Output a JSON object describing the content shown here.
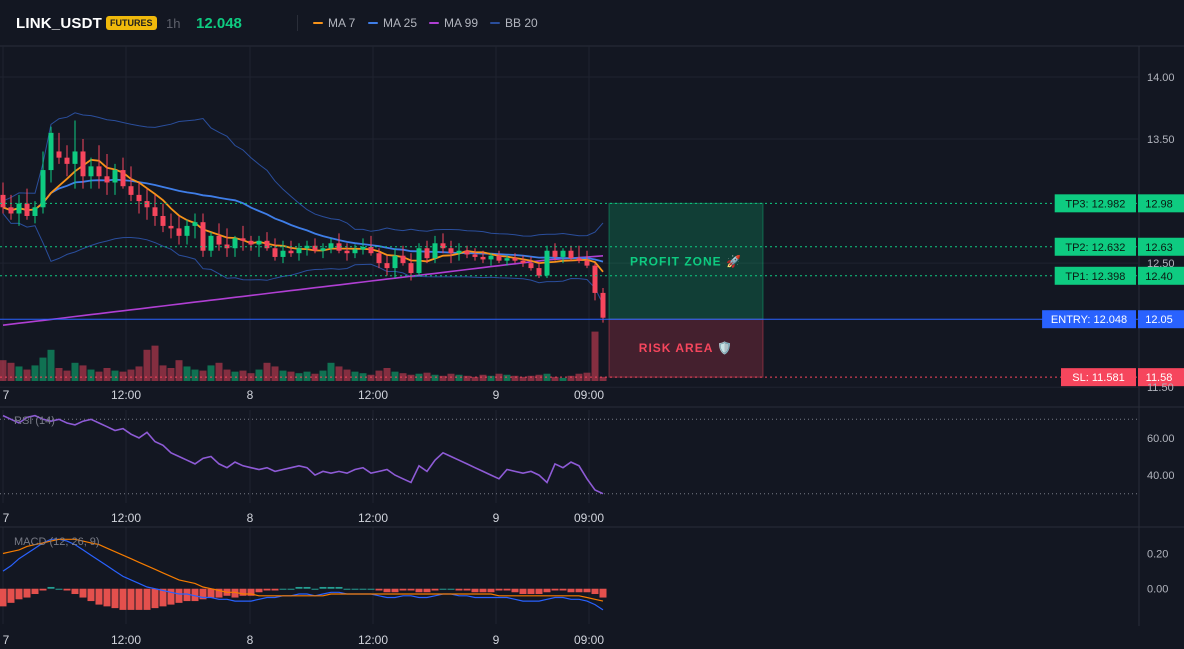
{
  "header": {
    "symbol": "LINK_USDT",
    "badge": "FUTURES",
    "timeframe": "1h",
    "price": "12.048",
    "colors": {
      "badge_bg": "#f0b90b",
      "badge_text": "#1e1e1e",
      "price": "#0ecb81"
    }
  },
  "legend": [
    {
      "label": "MA 7",
      "color": "#f7931a"
    },
    {
      "label": "MA 25",
      "color": "#3f7ee8"
    },
    {
      "label": "MA 99",
      "color": "#b03fd3"
    },
    {
      "label": "BB 20",
      "color": "#2a4e9c"
    }
  ],
  "chart_data": [
    {
      "type": "candlestick",
      "title": "LINK_USDT 1h",
      "colors": {
        "up": "#0ecb81",
        "down": "#f6465d",
        "bb": "#2a4e9c",
        "ma7": "#f7931a",
        "ma25": "#3f7ee8",
        "ma99": "#b03fd3"
      },
      "ylim": [
        11.55,
        14.25
      ],
      "y_ticks": [
        14.0,
        13.5,
        12.5,
        11.5
      ],
      "y_tick_labels": [
        "14.00",
        "13.50",
        "12.50",
        "11.50"
      ],
      "x_tick_labels": [
        "7",
        "12:00",
        "8",
        "12:00",
        "9",
        "09:00"
      ],
      "candles": [
        [
          13.05,
          13.15,
          12.9,
          12.95
        ],
        [
          12.95,
          13.05,
          12.85,
          12.9
        ],
        [
          12.9,
          13.05,
          12.8,
          12.98
        ],
        [
          12.98,
          13.1,
          12.85,
          12.88
        ],
        [
          12.88,
          13.0,
          12.82,
          12.95
        ],
        [
          12.95,
          13.4,
          12.9,
          13.25
        ],
        [
          13.25,
          13.6,
          13.15,
          13.55
        ],
        [
          13.4,
          13.55,
          13.3,
          13.35
        ],
        [
          13.35,
          13.45,
          13.2,
          13.3
        ],
        [
          13.3,
          13.65,
          13.1,
          13.4
        ],
        [
          13.4,
          13.5,
          13.1,
          13.2
        ],
        [
          13.2,
          13.35,
          13.1,
          13.28
        ],
        [
          13.28,
          13.45,
          13.1,
          13.2
        ],
        [
          13.2,
          13.38,
          13.05,
          13.15
        ],
        [
          13.15,
          13.3,
          13.05,
          13.25
        ],
        [
          13.25,
          13.35,
          13.1,
          13.12
        ],
        [
          13.12,
          13.28,
          13.0,
          13.05
        ],
        [
          13.05,
          13.15,
          12.9,
          13.0
        ],
        [
          13.0,
          13.1,
          12.85,
          12.95
        ],
        [
          12.95,
          13.05,
          12.8,
          12.88
        ],
        [
          12.88,
          12.98,
          12.75,
          12.8
        ],
        [
          12.8,
          12.9,
          12.7,
          12.78
        ],
        [
          12.78,
          12.88,
          12.65,
          12.72
        ],
        [
          12.72,
          12.85,
          12.65,
          12.8
        ],
        [
          12.8,
          12.9,
          12.7,
          12.83
        ],
        [
          12.83,
          12.9,
          12.55,
          12.6
        ],
        [
          12.6,
          12.75,
          12.55,
          12.72
        ],
        [
          12.72,
          12.82,
          12.6,
          12.65
        ],
        [
          12.65,
          12.78,
          12.55,
          12.62
        ],
        [
          12.62,
          12.72,
          12.55,
          12.7
        ],
        [
          12.7,
          12.8,
          12.6,
          12.68
        ],
        [
          12.68,
          12.72,
          12.6,
          12.65
        ],
        [
          12.65,
          12.72,
          12.55,
          12.68
        ],
        [
          12.68,
          12.75,
          12.6,
          12.62
        ],
        [
          12.62,
          12.7,
          12.52,
          12.55
        ],
        [
          12.55,
          12.68,
          12.5,
          12.6
        ],
        [
          12.6,
          12.68,
          12.55,
          12.58
        ],
        [
          12.58,
          12.66,
          12.52,
          12.62
        ],
        [
          12.62,
          12.68,
          12.56,
          12.64
        ],
        [
          12.64,
          12.7,
          12.58,
          12.6
        ],
        [
          12.6,
          12.66,
          12.54,
          12.62
        ],
        [
          12.62,
          12.7,
          12.58,
          12.66
        ],
        [
          12.66,
          12.74,
          12.58,
          12.6
        ],
        [
          12.6,
          12.66,
          12.52,
          12.58
        ],
        [
          12.58,
          12.65,
          12.54,
          12.61
        ],
        [
          12.61,
          12.7,
          12.57,
          12.63
        ],
        [
          12.63,
          12.72,
          12.56,
          12.58
        ],
        [
          12.58,
          12.62,
          12.46,
          12.5
        ],
        [
          12.5,
          12.56,
          12.4,
          12.46
        ],
        [
          12.46,
          12.62,
          12.38,
          12.56
        ],
        [
          12.56,
          12.64,
          12.48,
          12.5
        ],
        [
          12.5,
          12.58,
          12.36,
          12.42
        ],
        [
          12.42,
          12.66,
          12.4,
          12.62
        ],
        [
          12.62,
          12.68,
          12.5,
          12.54
        ],
        [
          12.54,
          12.72,
          12.5,
          12.66
        ],
        [
          12.66,
          12.74,
          12.58,
          12.62
        ],
        [
          12.62,
          12.68,
          12.5,
          12.58
        ],
        [
          12.58,
          12.66,
          12.52,
          12.6
        ],
        [
          12.6,
          12.64,
          12.54,
          12.57
        ],
        [
          12.57,
          12.62,
          12.52,
          12.55
        ],
        [
          12.55,
          12.6,
          12.5,
          12.53
        ],
        [
          12.53,
          12.58,
          12.48,
          12.56
        ],
        [
          12.56,
          12.6,
          12.5,
          12.52
        ],
        [
          12.52,
          12.56,
          12.48,
          12.54
        ],
        [
          12.54,
          12.58,
          12.5,
          12.52
        ],
        [
          12.52,
          12.56,
          12.47,
          12.5
        ],
        [
          12.5,
          12.55,
          12.44,
          12.46
        ],
        [
          12.46,
          12.5,
          12.38,
          12.4
        ],
        [
          12.4,
          12.64,
          12.38,
          12.6
        ],
        [
          12.6,
          12.66,
          12.52,
          12.55
        ],
        [
          12.55,
          12.62,
          12.5,
          12.6
        ],
        [
          12.6,
          12.64,
          12.52,
          12.54
        ],
        [
          12.54,
          12.64,
          12.5,
          12.52
        ],
        [
          12.52,
          12.6,
          12.46,
          12.48
        ],
        [
          12.48,
          12.5,
          12.2,
          12.26
        ],
        [
          12.26,
          12.3,
          12.02,
          12.06
        ]
      ],
      "volume": [
        40,
        35,
        28,
        22,
        30,
        45,
        60,
        25,
        20,
        35,
        30,
        22,
        18,
        25,
        20,
        18,
        22,
        28,
        60,
        68,
        30,
        25,
        40,
        28,
        22,
        20,
        30,
        35,
        22,
        18,
        20,
        15,
        22,
        35,
        28,
        20,
        18,
        15,
        18,
        14,
        20,
        35,
        28,
        22,
        18,
        15,
        12,
        20,
        25,
        18,
        15,
        12,
        14,
        16,
        12,
        10,
        14,
        12,
        10,
        8,
        12,
        10,
        14,
        12,
        10,
        8,
        10,
        12,
        14,
        8,
        6,
        10,
        14,
        16,
        95,
        8
      ],
      "levels": [
        {
          "label": "TP3: 12.982",
          "value_label": "12.98",
          "value": 12.982,
          "color": "#0ecb81"
        },
        {
          "label": "TP2: 12.632",
          "value_label": "12.63",
          "value": 12.632,
          "color": "#0ecb81"
        },
        {
          "label": "TP1: 12.398",
          "value_label": "12.40",
          "value": 12.398,
          "color": "#0ecb81"
        },
        {
          "label": "ENTRY: 12.048",
          "value_label": "12.05",
          "value": 12.048,
          "color": "#2962ff"
        },
        {
          "label": "SL: 11.581",
          "value_label": "11.58",
          "value": 11.581,
          "color": "#f6465d"
        }
      ],
      "zones": [
        {
          "label": "PROFIT ZONE 🚀",
          "from": 12.048,
          "to": 12.982,
          "color": "#0ecb81"
        },
        {
          "label": "RISK AREA 🛡️",
          "from": 11.581,
          "to": 12.048,
          "color": "#f6465d"
        }
      ]
    },
    {
      "type": "line",
      "title": "RSI (14)",
      "ylim": [
        25,
        75
      ],
      "y_ticks": [
        60,
        40
      ],
      "y_tick_labels": [
        "60.00",
        "40.00"
      ],
      "guides": [
        70,
        30
      ],
      "x_tick_labels": [
        "7",
        "12:00",
        "8",
        "12:00",
        "9",
        "09:00"
      ],
      "series": [
        {
          "color": "#8e5bd6",
          "values": [
            72,
            70,
            68,
            71,
            72,
            70,
            69,
            70,
            68,
            67,
            69,
            70,
            68,
            66,
            64,
            65,
            62,
            60,
            63,
            58,
            56,
            52,
            50,
            48,
            46,
            49,
            50,
            46,
            44,
            47,
            45,
            44,
            43,
            44,
            42,
            43,
            44,
            45,
            44,
            40,
            42,
            41,
            42,
            41,
            43,
            44,
            41,
            42,
            43,
            40,
            38,
            36,
            45,
            42,
            48,
            52,
            50,
            48,
            46,
            44,
            42,
            40,
            38,
            43,
            42,
            41,
            42,
            40,
            36,
            46,
            44,
            47,
            45,
            38,
            32,
            30
          ]
        }
      ]
    },
    {
      "type": "line",
      "title": "MACD (12, 26, 9)",
      "ylim": [
        -0.2,
        0.35
      ],
      "y_ticks": [
        0.2,
        0.0
      ],
      "y_tick_labels": [
        "0.20",
        "0.00"
      ],
      "x_tick_labels": [
        "7",
        "12:00",
        "8",
        "12:00",
        "9",
        "09:00"
      ],
      "series": [
        {
          "color": "#2962ff",
          "values": [
            0.1,
            0.13,
            0.17,
            0.2,
            0.23,
            0.26,
            0.28,
            0.28,
            0.27,
            0.25,
            0.22,
            0.19,
            0.16,
            0.13,
            0.1,
            0.07,
            0.05,
            0.03,
            0.01,
            0.0,
            -0.01,
            -0.02,
            -0.03,
            -0.03,
            -0.04,
            -0.05,
            -0.05,
            -0.06,
            -0.06,
            -0.07,
            -0.07,
            -0.07,
            -0.06,
            -0.05,
            -0.05,
            -0.04,
            -0.04,
            -0.03,
            -0.03,
            -0.04,
            -0.03,
            -0.02,
            -0.02,
            -0.03,
            -0.03,
            -0.03,
            -0.03,
            -0.04,
            -0.05,
            -0.05,
            -0.04,
            -0.04,
            -0.05,
            -0.05,
            -0.04,
            -0.03,
            -0.03,
            -0.04,
            -0.04,
            -0.05,
            -0.05,
            -0.05,
            -0.05,
            -0.05,
            -0.06,
            -0.07,
            -0.07,
            -0.07,
            -0.06,
            -0.05,
            -0.05,
            -0.06,
            -0.06,
            -0.07,
            -0.09,
            -0.12
          ]
        },
        {
          "color": "#f57c00",
          "values": [
            0.2,
            0.21,
            0.22,
            0.24,
            0.25,
            0.26,
            0.27,
            0.28,
            0.28,
            0.28,
            0.27,
            0.26,
            0.25,
            0.23,
            0.21,
            0.19,
            0.17,
            0.15,
            0.13,
            0.11,
            0.09,
            0.07,
            0.05,
            0.04,
            0.03,
            0.01,
            0.0,
            -0.01,
            -0.02,
            -0.02,
            -0.03,
            -0.03,
            -0.04,
            -0.04,
            -0.04,
            -0.04,
            -0.04,
            -0.04,
            -0.04,
            -0.04,
            -0.04,
            -0.03,
            -0.03,
            -0.03,
            -0.03,
            -0.03,
            -0.03,
            -0.03,
            -0.03,
            -0.03,
            -0.03,
            -0.03,
            -0.03,
            -0.03,
            -0.03,
            -0.03,
            -0.03,
            -0.03,
            -0.03,
            -0.03,
            -0.03,
            -0.03,
            -0.04,
            -0.04,
            -0.04,
            -0.04,
            -0.04,
            -0.04,
            -0.04,
            -0.04,
            -0.04,
            -0.04,
            -0.04,
            -0.05,
            -0.06,
            -0.07
          ]
        }
      ],
      "histogram": [
        -0.1,
        -0.08,
        -0.06,
        -0.05,
        -0.03,
        -0.01,
        0.01,
        0.0,
        -0.01,
        -0.03,
        -0.05,
        -0.07,
        -0.09,
        -0.1,
        -0.11,
        -0.12,
        -0.12,
        -0.12,
        -0.12,
        -0.11,
        -0.1,
        -0.09,
        -0.08,
        -0.07,
        -0.07,
        -0.06,
        -0.05,
        -0.05,
        -0.04,
        -0.05,
        -0.04,
        -0.04,
        -0.02,
        -0.01,
        -0.01,
        0.0,
        0.0,
        0.01,
        0.01,
        0.0,
        0.01,
        0.01,
        0.01,
        0.0,
        0.0,
        0.0,
        0.0,
        -0.01,
        -0.02,
        -0.02,
        -0.01,
        -0.01,
        -0.02,
        -0.02,
        -0.01,
        0.0,
        0.0,
        -0.01,
        -0.01,
        -0.02,
        -0.02,
        -0.02,
        -0.01,
        -0.01,
        -0.02,
        -0.03,
        -0.03,
        -0.03,
        -0.02,
        -0.01,
        -0.01,
        -0.02,
        -0.02,
        -0.02,
        -0.03,
        -0.05
      ]
    }
  ]
}
